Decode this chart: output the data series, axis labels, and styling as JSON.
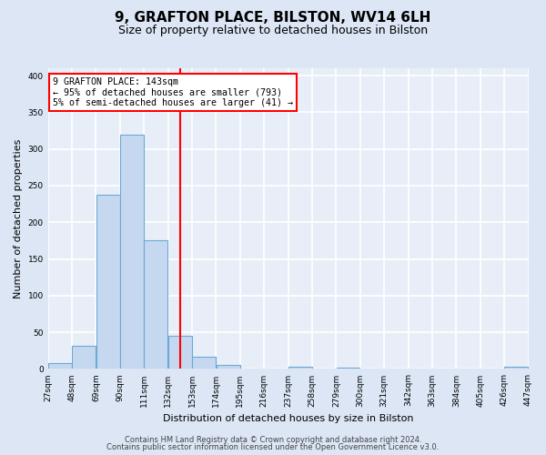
{
  "title": "9, GRAFTON PLACE, BILSTON, WV14 6LH",
  "subtitle": "Size of property relative to detached houses in Bilston",
  "xlabel": "Distribution of detached houses by size in Bilston",
  "ylabel": "Number of detached properties",
  "footer_line1": "Contains HM Land Registry data © Crown copyright and database right 2024.",
  "footer_line2": "Contains public sector information licensed under the Open Government Licence v3.0.",
  "bin_edges": [
    27,
    48,
    69,
    90,
    111,
    132,
    153,
    174,
    195,
    216,
    237,
    258,
    279,
    300,
    321,
    342,
    363,
    384,
    405,
    426,
    447
  ],
  "bar_heights": [
    8,
    32,
    238,
    320,
    175,
    45,
    17,
    5,
    0,
    0,
    3,
    0,
    2,
    0,
    0,
    0,
    0,
    0,
    0,
    3
  ],
  "bar_facecolor": "#c5d8f0",
  "bar_edgecolor": "#6aaad4",
  "vline_x": 143,
  "vline_color": "red",
  "vline_lw": 1.5,
  "annotation_text_line1": "9 GRAFTON PLACE: 143sqm",
  "annotation_text_line2": "← 95% of detached houses are smaller (793)",
  "annotation_text_line3": "5% of semi-detached houses are larger (41) →",
  "ylim": [
    0,
    410
  ],
  "yticks": [
    0,
    50,
    100,
    150,
    200,
    250,
    300,
    350,
    400
  ],
  "bg_color": "#dce6f5",
  "plot_bg_color": "#e8eef8",
  "grid_color": "white",
  "title_fontsize": 11,
  "subtitle_fontsize": 9,
  "axis_label_fontsize": 8,
  "tick_fontsize": 6.5,
  "footer_fontsize": 6,
  "tick_labels": [
    "27sqm",
    "48sqm",
    "69sqm",
    "90sqm",
    "111sqm",
    "132sqm",
    "153sqm",
    "174sqm",
    "195sqm",
    "216sqm",
    "237sqm",
    "258sqm",
    "279sqm",
    "300sqm",
    "321sqm",
    "342sqm",
    "363sqm",
    "384sqm",
    "405sqm",
    "426sqm",
    "447sqm"
  ]
}
